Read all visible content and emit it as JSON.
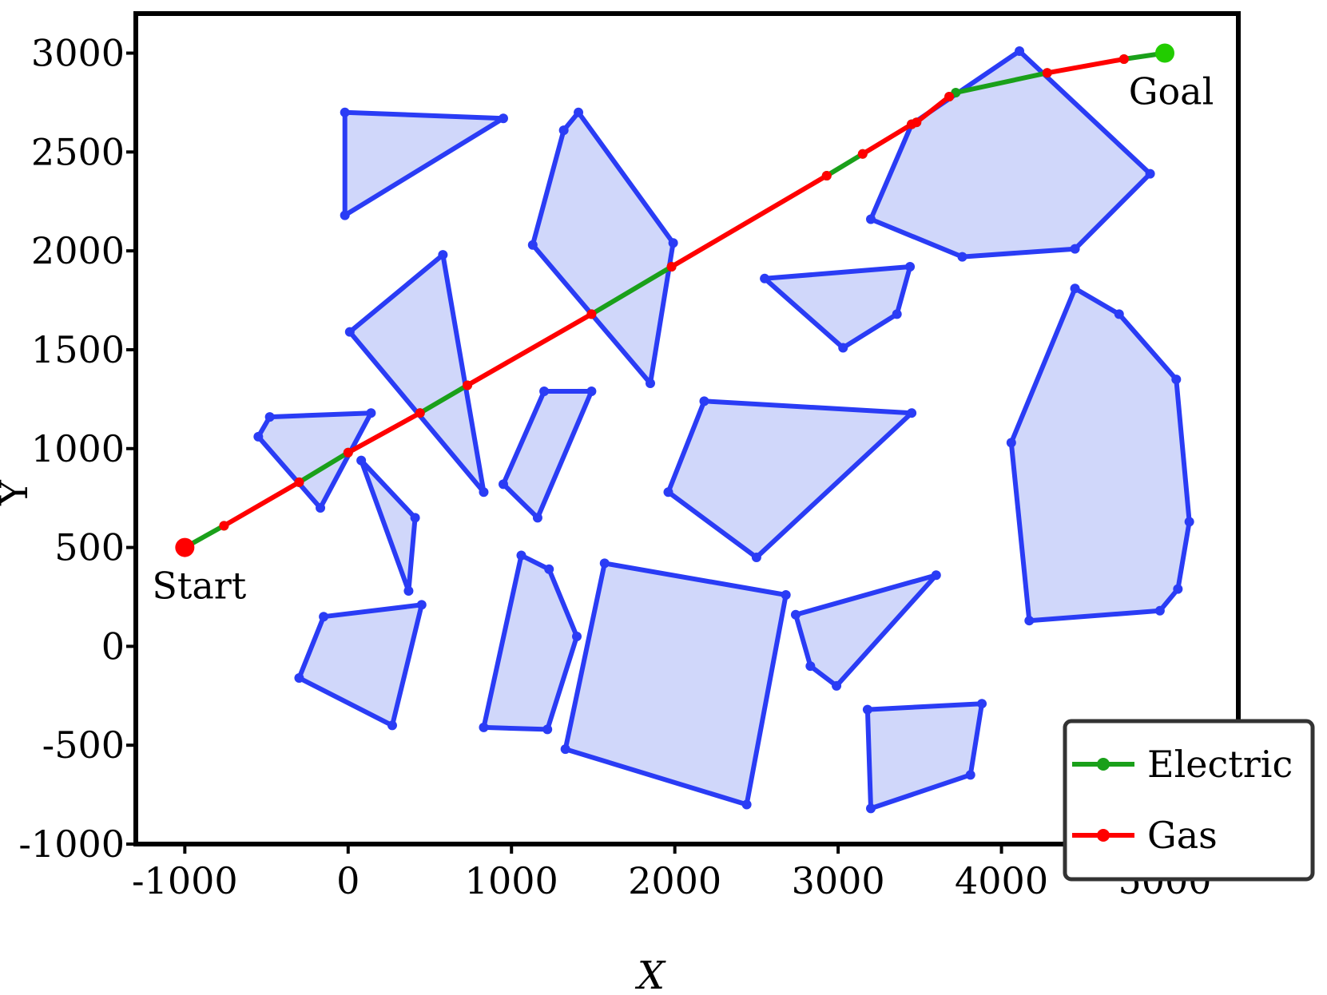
{
  "chart_data": {
    "type": "line",
    "xlabel": "X",
    "ylabel": "Y",
    "xlim": [
      -1300,
      5450
    ],
    "ylim": [
      -1000,
      3200
    ],
    "xticks": [
      -1000,
      0,
      1000,
      2000,
      3000,
      4000,
      5000
    ],
    "yticks": [
      -1000,
      -500,
      0,
      500,
      1000,
      1500,
      2000,
      2500,
      3000
    ],
    "xtick_labels": [
      "-1000",
      "0",
      "1000",
      "2000",
      "3000",
      "4000",
      "5000"
    ],
    "ytick_labels": [
      "-1000",
      "-500",
      "0",
      "500",
      "1000",
      "1500",
      "2000",
      "2500",
      "3000"
    ],
    "grid": false,
    "legend_position": "bottom-right",
    "colors": {
      "obstacle_edge": "#2a3cf5",
      "obstacle_fill": "#d0d7fa",
      "electric": "#1aa01a",
      "gas": "#ff0000",
      "start": "#ff0000",
      "goal": "#22cc00"
    },
    "annotations": {
      "start": "Start",
      "goal": "Goal"
    },
    "start_point": [
      -1000,
      500
    ],
    "goal_point": [
      5000,
      3000
    ],
    "obstacles": [
      [
        [
          -20,
          2700
        ],
        [
          950,
          2670
        ],
        [
          -20,
          2180
        ]
      ],
      [
        [
          -550,
          1060
        ],
        [
          -480,
          1160
        ],
        [
          140,
          1180
        ],
        [
          -170,
          700
        ]
      ],
      [
        [
          10,
          1590
        ],
        [
          580,
          1980
        ],
        [
          830,
          780
        ]
      ],
      [
        [
          80,
          940
        ],
        [
          410,
          650
        ],
        [
          370,
          280
        ]
      ],
      [
        [
          -150,
          150
        ],
        [
          450,
          210
        ],
        [
          270,
          -400
        ],
        [
          -300,
          -160
        ]
      ],
      [
        [
          1130,
          2030
        ],
        [
          1320,
          2610
        ],
        [
          1410,
          2700
        ],
        [
          1990,
          2040
        ],
        [
          1850,
          1330
        ]
      ],
      [
        [
          950,
          820
        ],
        [
          1200,
          1290
        ],
        [
          1490,
          1290
        ],
        [
          1160,
          650
        ]
      ],
      [
        [
          1060,
          460
        ],
        [
          1230,
          390
        ],
        [
          1400,
          50
        ],
        [
          1220,
          -420
        ],
        [
          830,
          -410
        ]
      ],
      [
        [
          1570,
          420
        ],
        [
          2680,
          260
        ],
        [
          2440,
          -800
        ],
        [
          1330,
          -520
        ]
      ],
      [
        [
          1960,
          780
        ],
        [
          2180,
          1240
        ],
        [
          3450,
          1180
        ],
        [
          2500,
          450
        ]
      ],
      [
        [
          2550,
          1860
        ],
        [
          3440,
          1920
        ],
        [
          3360,
          1680
        ],
        [
          3030,
          1510
        ]
      ],
      [
        [
          3200,
          2160
        ],
        [
          3450,
          2640
        ],
        [
          4110,
          3010
        ],
        [
          4910,
          2390
        ],
        [
          4450,
          2010
        ],
        [
          3760,
          1970
        ]
      ],
      [
        [
          2740,
          160
        ],
        [
          3600,
          360
        ],
        [
          2990,
          -200
        ],
        [
          2830,
          -100
        ]
      ],
      [
        [
          4060,
          1030
        ],
        [
          4450,
          1810
        ],
        [
          4720,
          1680
        ],
        [
          5070,
          1350
        ],
        [
          5150,
          630
        ],
        [
          5080,
          290
        ],
        [
          4970,
          180
        ],
        [
          4170,
          130
        ]
      ],
      [
        [
          3180,
          -320
        ],
        [
          3880,
          -290
        ],
        [
          3810,
          -650
        ],
        [
          3200,
          -820
        ]
      ]
    ],
    "series": [
      {
        "name": "Electric",
        "segments": [
          [
            [
              -1000,
              500
            ],
            [
              -760,
              610
            ]
          ],
          [
            [
              -300,
              830
            ],
            [
              0,
              980
            ]
          ],
          [
            [
              440,
              1180
            ],
            [
              730,
              1320
            ]
          ],
          [
            [
              1490,
              1680
            ],
            [
              1980,
              1920
            ]
          ],
          [
            [
              2930,
              2380
            ],
            [
              3150,
              2490
            ]
          ],
          [
            [
              3450,
              2640
            ],
            [
              3480,
              2650
            ]
          ],
          [
            [
              3680,
              2780
            ],
            [
              3720,
              2800
            ],
            [
              4280,
              2900
            ]
          ],
          [
            [
              4750,
              2970
            ],
            [
              5000,
              3000
            ]
          ]
        ]
      },
      {
        "name": "Gas",
        "segments": [
          [
            [
              -760,
              610
            ],
            [
              -300,
              830
            ]
          ],
          [
            [
              0,
              980
            ],
            [
              440,
              1180
            ]
          ],
          [
            [
              730,
              1320
            ],
            [
              1490,
              1680
            ]
          ],
          [
            [
              1980,
              1920
            ],
            [
              2930,
              2380
            ]
          ],
          [
            [
              3150,
              2490
            ],
            [
              3450,
              2640
            ]
          ],
          [
            [
              3480,
              2650
            ],
            [
              3680,
              2780
            ]
          ],
          [
            [
              4280,
              2900
            ],
            [
              4750,
              2970
            ]
          ]
        ]
      }
    ]
  }
}
